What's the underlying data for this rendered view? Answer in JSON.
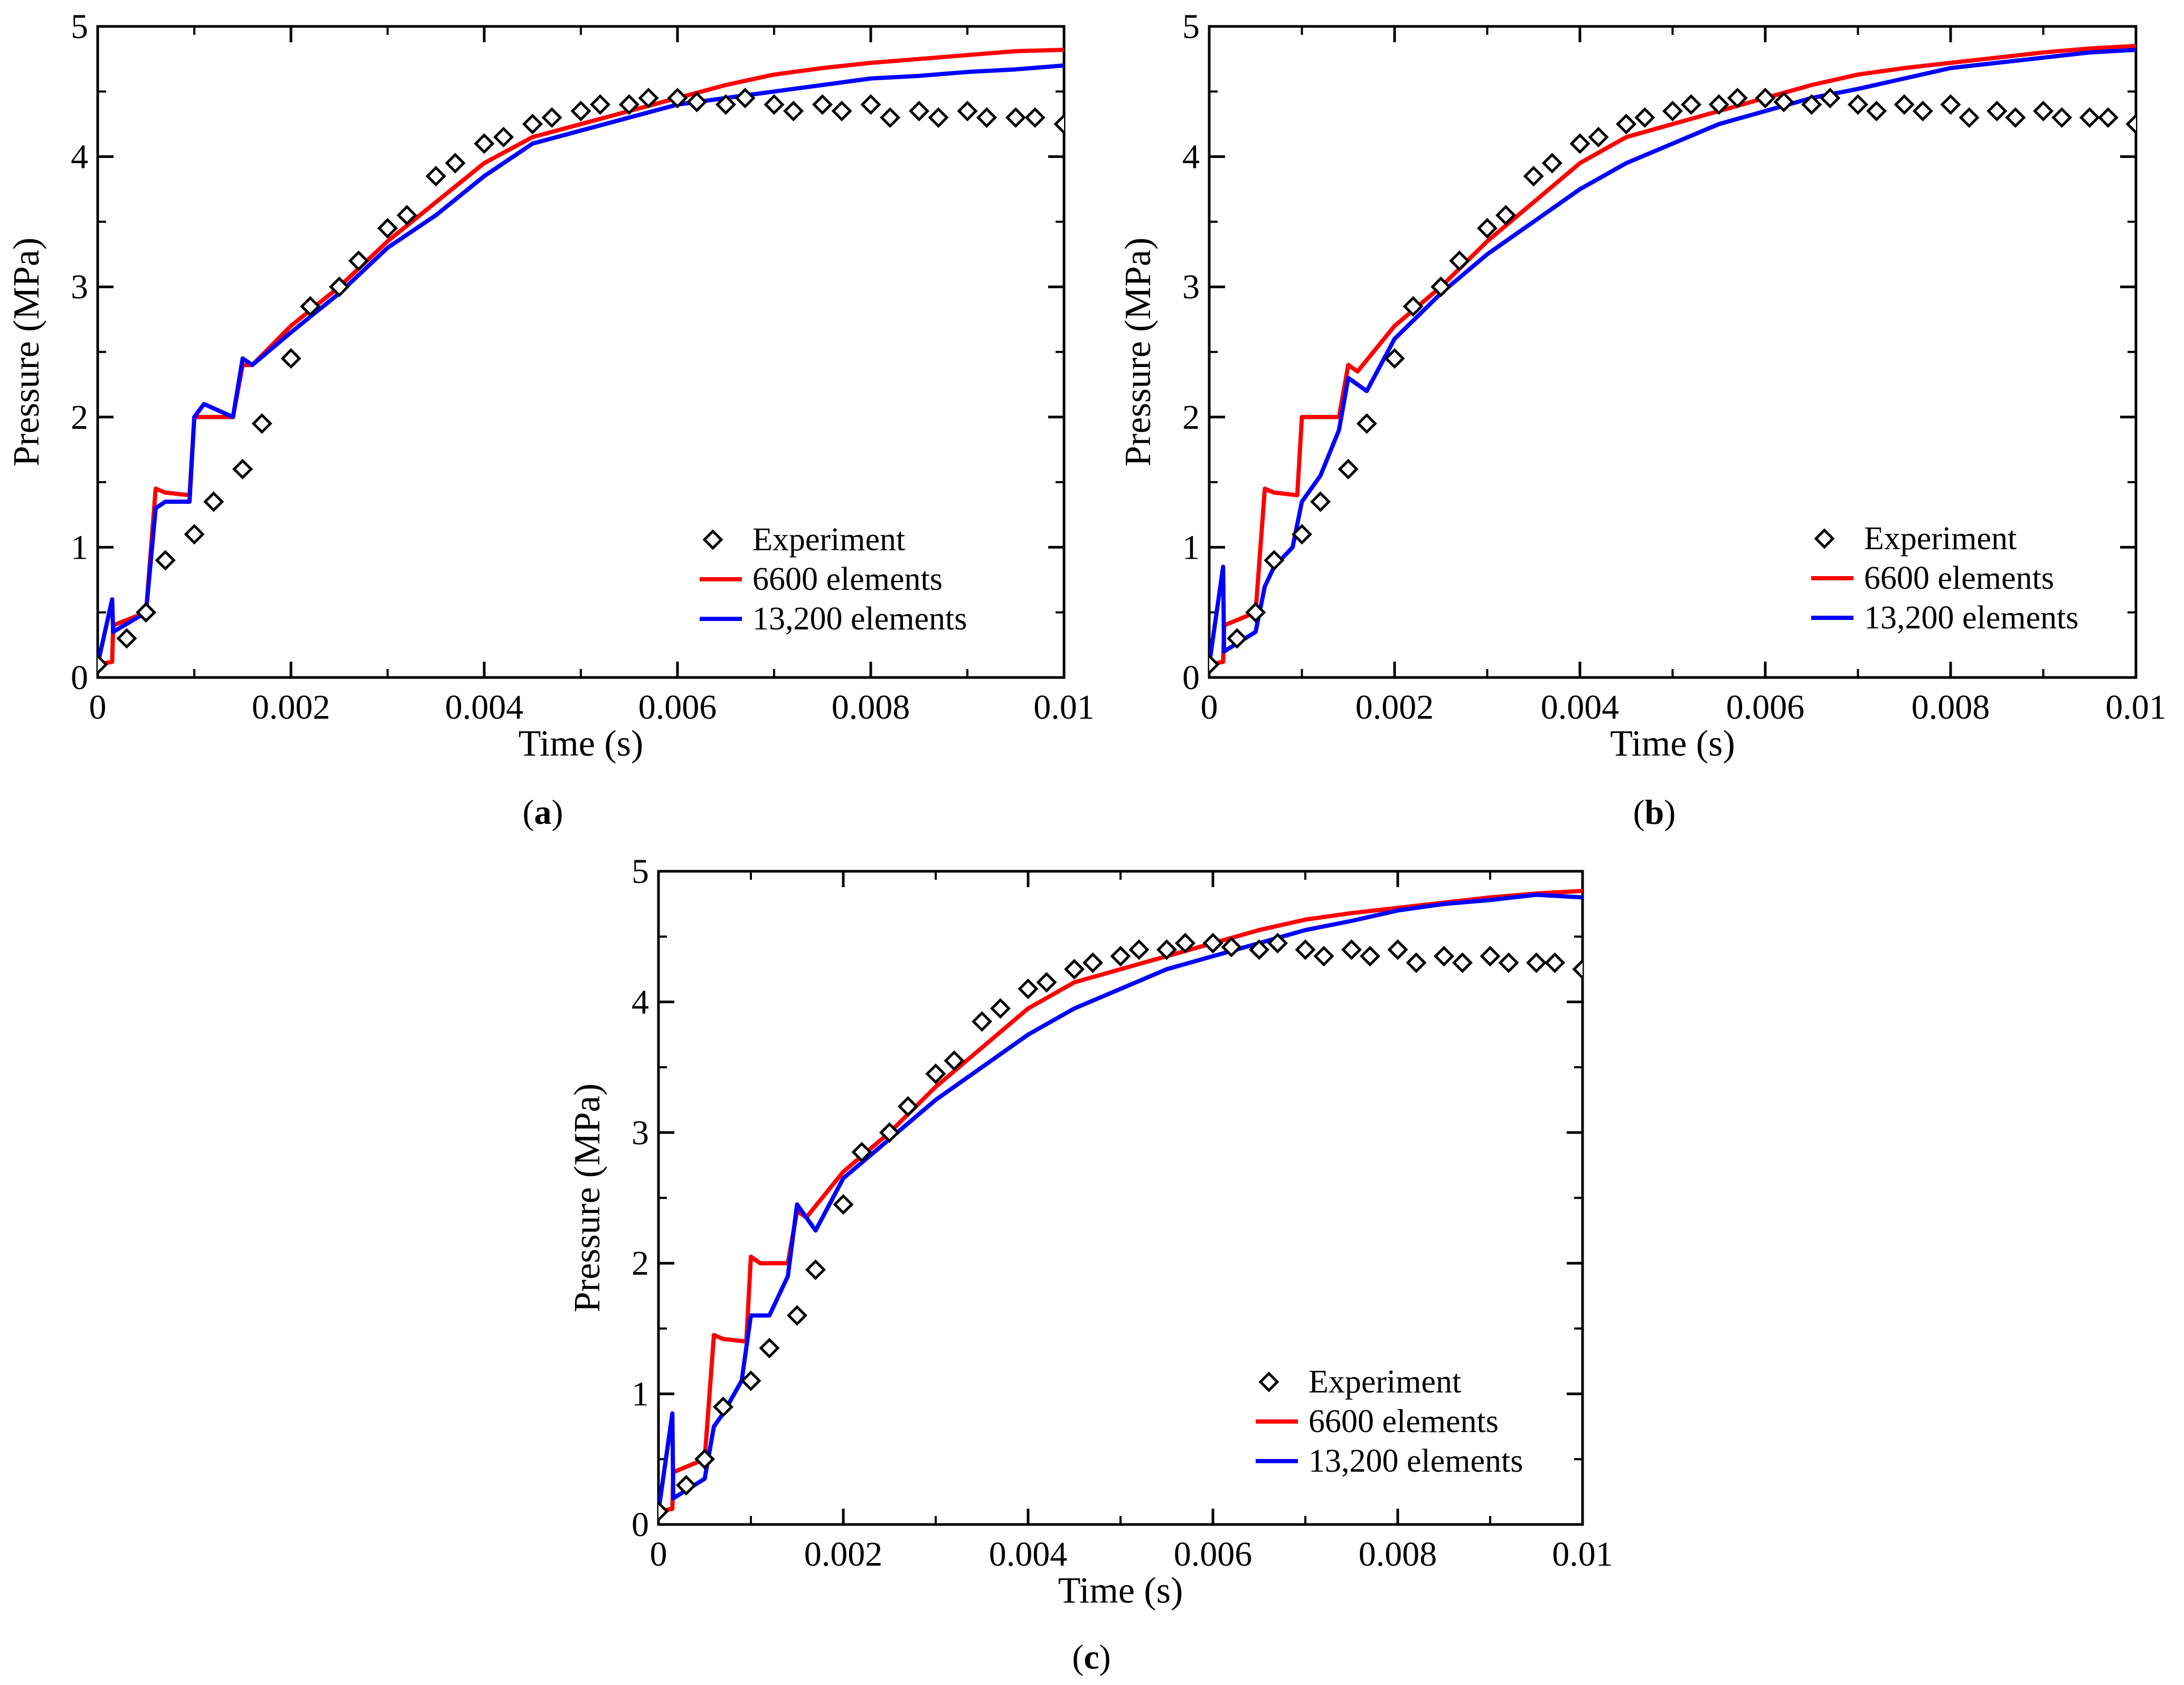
{
  "figure": {
    "panel_labels": [
      "(a)",
      "(b)",
      "(c)"
    ]
  },
  "colors": {
    "experiment": "#000000",
    "elements_6600": "#ff0000",
    "elements_13200": "#0000ff"
  },
  "chart_data": [
    {
      "panel": "(a)",
      "type": "line",
      "title": "",
      "xlabel": "Time (s)",
      "ylabel": "Pressure (MPa)",
      "xlim": [
        0,
        0.01
      ],
      "ylim": [
        0,
        5
      ],
      "xticks": [
        0,
        0.002,
        0.004,
        0.006,
        0.008,
        0.01
      ],
      "xtick_labels": [
        "0",
        "0.002",
        "0.004",
        "0.006",
        "0.008",
        "0.01"
      ],
      "yticks": [
        0,
        1,
        2,
        3,
        4,
        5
      ],
      "ytick_labels": [
        "0",
        "1",
        "2",
        "3",
        "4",
        "5"
      ],
      "legend_position": "bottom-right",
      "series": [
        {
          "name": "Experiment",
          "marker": "diamond",
          "color": "#000000",
          "x": [
            0,
            0.0003,
            0.0005,
            0.0007,
            0.001,
            0.0012,
            0.0015,
            0.0017,
            0.002,
            0.0022,
            0.0025,
            0.0027,
            0.003,
            0.0032,
            0.0035,
            0.0037,
            0.004,
            0.0042,
            0.0045,
            0.0047,
            0.005,
            0.0052,
            0.0055,
            0.0057,
            0.006,
            0.0062,
            0.0065,
            0.0067,
            0.007,
            0.0072,
            0.0075,
            0.0077,
            0.008,
            0.0082,
            0.0085,
            0.0087,
            0.009,
            0.0092,
            0.0095,
            0.0097,
            0.01
          ],
          "y": [
            0.1,
            0.3,
            0.5,
            0.9,
            1.1,
            1.35,
            1.6,
            1.95,
            2.45,
            2.85,
            3.0,
            3.2,
            3.45,
            3.55,
            3.85,
            3.95,
            4.1,
            4.15,
            4.25,
            4.3,
            4.35,
            4.4,
            4.4,
            4.45,
            4.45,
            4.42,
            4.4,
            4.45,
            4.4,
            4.35,
            4.4,
            4.35,
            4.4,
            4.3,
            4.35,
            4.3,
            4.35,
            4.3,
            4.3,
            4.3,
            4.25
          ]
        },
        {
          "name": "6600 elements",
          "marker": "line",
          "color": "#ff0000",
          "x": [
            0,
            0.00015,
            0.00016,
            0.0005,
            0.0006,
            0.0007,
            0.00095,
            0.001,
            0.0011,
            0.0014,
            0.0015,
            0.0016,
            0.002,
            0.0025,
            0.003,
            0.0035,
            0.004,
            0.0045,
            0.005,
            0.0055,
            0.006,
            0.0065,
            0.007,
            0.0075,
            0.008,
            0.0085,
            0.009,
            0.0095,
            0.01
          ],
          "y": [
            0.1,
            0.12,
            0.4,
            0.5,
            1.45,
            1.42,
            1.4,
            2.0,
            2.0,
            2.0,
            2.4,
            2.4,
            2.7,
            3.0,
            3.35,
            3.65,
            3.95,
            4.15,
            4.25,
            4.35,
            4.45,
            4.55,
            4.63,
            4.68,
            4.72,
            4.75,
            4.78,
            4.81,
            4.82
          ]
        },
        {
          "name": "13,200 elements",
          "marker": "line",
          "color": "#0000ff",
          "x": [
            0,
            0.00015,
            0.00016,
            0.0005,
            0.0006,
            0.0007,
            0.00095,
            0.001,
            0.0011,
            0.0014,
            0.0015,
            0.0016,
            0.002,
            0.0025,
            0.003,
            0.0035,
            0.004,
            0.0045,
            0.005,
            0.0055,
            0.006,
            0.0065,
            0.007,
            0.0075,
            0.008,
            0.0085,
            0.009,
            0.0095,
            0.01
          ],
          "y": [
            0.1,
            0.6,
            0.35,
            0.5,
            1.3,
            1.35,
            1.35,
            2.0,
            2.1,
            2.0,
            2.45,
            2.4,
            2.65,
            2.95,
            3.3,
            3.55,
            3.85,
            4.1,
            4.2,
            4.3,
            4.4,
            4.45,
            4.5,
            4.55,
            4.6,
            4.62,
            4.65,
            4.67,
            4.7
          ]
        }
      ]
    },
    {
      "panel": "(b)",
      "type": "line",
      "title": "",
      "xlabel": "Time (s)",
      "ylabel": "Pressure (MPa)",
      "xlim": [
        0,
        0.01
      ],
      "ylim": [
        0,
        5
      ],
      "xticks": [
        0,
        0.002,
        0.004,
        0.006,
        0.008,
        0.01
      ],
      "xtick_labels": [
        "0",
        "0.002",
        "0.004",
        "0.006",
        "0.008",
        "0.01"
      ],
      "yticks": [
        0,
        1,
        2,
        3,
        4,
        5
      ],
      "ytick_labels": [
        "0",
        "1",
        "2",
        "3",
        "4",
        "5"
      ],
      "legend_position": "bottom-right",
      "series": [
        {
          "name": "Experiment",
          "marker": "diamond",
          "color": "#000000",
          "x": [
            0,
            0.0003,
            0.0005,
            0.0007,
            0.001,
            0.0012,
            0.0015,
            0.0017,
            0.002,
            0.0022,
            0.0025,
            0.0027,
            0.003,
            0.0032,
            0.0035,
            0.0037,
            0.004,
            0.0042,
            0.0045,
            0.0047,
            0.005,
            0.0052,
            0.0055,
            0.0057,
            0.006,
            0.0062,
            0.0065,
            0.0067,
            0.007,
            0.0072,
            0.0075,
            0.0077,
            0.008,
            0.0082,
            0.0085,
            0.0087,
            0.009,
            0.0092,
            0.0095,
            0.0097,
            0.01
          ],
          "y": [
            0.1,
            0.3,
            0.5,
            0.9,
            1.1,
            1.35,
            1.6,
            1.95,
            2.45,
            2.85,
            3.0,
            3.2,
            3.45,
            3.55,
            3.85,
            3.95,
            4.1,
            4.15,
            4.25,
            4.3,
            4.35,
            4.4,
            4.4,
            4.45,
            4.45,
            4.42,
            4.4,
            4.45,
            4.4,
            4.35,
            4.4,
            4.35,
            4.4,
            4.3,
            4.35,
            4.3,
            4.35,
            4.3,
            4.3,
            4.3,
            4.25
          ]
        },
        {
          "name": "6600 elements",
          "marker": "line",
          "color": "#ff0000",
          "x": [
            0,
            0.00015,
            0.00016,
            0.0005,
            0.0006,
            0.0007,
            0.00095,
            0.001,
            0.0011,
            0.0014,
            0.0015,
            0.0016,
            0.002,
            0.0025,
            0.003,
            0.0035,
            0.004,
            0.0045,
            0.005,
            0.0055,
            0.006,
            0.0065,
            0.007,
            0.0075,
            0.008,
            0.0085,
            0.009,
            0.0095,
            0.01
          ],
          "y": [
            0.1,
            0.12,
            0.4,
            0.5,
            1.45,
            1.42,
            1.4,
            2.0,
            2.0,
            2.0,
            2.4,
            2.35,
            2.7,
            3.0,
            3.35,
            3.65,
            3.95,
            4.15,
            4.25,
            4.35,
            4.45,
            4.55,
            4.63,
            4.68,
            4.72,
            4.76,
            4.8,
            4.83,
            4.85
          ]
        },
        {
          "name": "13,200 elements",
          "marker": "line",
          "color": "#0000ff",
          "x": [
            0,
            0.00015,
            0.00016,
            0.0005,
            0.0006,
            0.0007,
            0.0009,
            0.001,
            0.0012,
            0.0014,
            0.0015,
            0.0017,
            0.002,
            0.0025,
            0.003,
            0.0035,
            0.004,
            0.0045,
            0.005,
            0.0055,
            0.006,
            0.0065,
            0.007,
            0.0075,
            0.008,
            0.0085,
            0.009,
            0.0095,
            0.01
          ],
          "y": [
            0.1,
            0.85,
            0.2,
            0.35,
            0.7,
            0.85,
            1.0,
            1.35,
            1.55,
            1.9,
            2.3,
            2.2,
            2.6,
            2.95,
            3.25,
            3.5,
            3.75,
            3.95,
            4.1,
            4.25,
            4.35,
            4.45,
            4.52,
            4.6,
            4.68,
            4.72,
            4.76,
            4.8,
            4.82
          ]
        }
      ]
    },
    {
      "panel": "(c)",
      "type": "line",
      "title": "",
      "xlabel": "Time (s)",
      "ylabel": "Pressure (MPa)",
      "xlim": [
        0,
        0.01
      ],
      "ylim": [
        0,
        5
      ],
      "xticks": [
        0,
        0.002,
        0.004,
        0.006,
        0.008,
        0.01
      ],
      "xtick_labels": [
        "0",
        "0.002",
        "0.004",
        "0.006",
        "0.008",
        "0.01"
      ],
      "yticks": [
        0,
        1,
        2,
        3,
        4,
        5
      ],
      "ytick_labels": [
        "0",
        "1",
        "2",
        "3",
        "4",
        "5"
      ],
      "legend_position": "bottom-right",
      "series": [
        {
          "name": "Experiment",
          "marker": "diamond",
          "color": "#000000",
          "x": [
            0,
            0.0003,
            0.0005,
            0.0007,
            0.001,
            0.0012,
            0.0015,
            0.0017,
            0.002,
            0.0022,
            0.0025,
            0.0027,
            0.003,
            0.0032,
            0.0035,
            0.0037,
            0.004,
            0.0042,
            0.0045,
            0.0047,
            0.005,
            0.0052,
            0.0055,
            0.0057,
            0.006,
            0.0062,
            0.0065,
            0.0067,
            0.007,
            0.0072,
            0.0075,
            0.0077,
            0.008,
            0.0082,
            0.0085,
            0.0087,
            0.009,
            0.0092,
            0.0095,
            0.0097,
            0.01
          ],
          "y": [
            0.1,
            0.3,
            0.5,
            0.9,
            1.1,
            1.35,
            1.6,
            1.95,
            2.45,
            2.85,
            3.0,
            3.2,
            3.45,
            3.55,
            3.85,
            3.95,
            4.1,
            4.15,
            4.25,
            4.3,
            4.35,
            4.4,
            4.4,
            4.45,
            4.45,
            4.42,
            4.4,
            4.45,
            4.4,
            4.35,
            4.4,
            4.35,
            4.4,
            4.3,
            4.35,
            4.3,
            4.35,
            4.3,
            4.3,
            4.3,
            4.25
          ]
        },
        {
          "name": "6600 elements",
          "marker": "line",
          "color": "#ff0000",
          "x": [
            0,
            0.00015,
            0.00016,
            0.0005,
            0.0006,
            0.0007,
            0.00095,
            0.001,
            0.0011,
            0.0014,
            0.0015,
            0.0016,
            0.002,
            0.0025,
            0.003,
            0.0035,
            0.004,
            0.0045,
            0.005,
            0.0055,
            0.006,
            0.0065,
            0.007,
            0.0075,
            0.008,
            0.0085,
            0.009,
            0.0095,
            0.01
          ],
          "y": [
            0.1,
            0.12,
            0.4,
            0.5,
            1.45,
            1.42,
            1.4,
            2.05,
            2.0,
            2.0,
            2.4,
            2.35,
            2.7,
            3.0,
            3.35,
            3.65,
            3.95,
            4.15,
            4.25,
            4.35,
            4.45,
            4.55,
            4.63,
            4.68,
            4.72,
            4.76,
            4.8,
            4.83,
            4.85
          ]
        },
        {
          "name": "13,200 elements",
          "marker": "line",
          "color": "#0000ff",
          "x": [
            0,
            0.00015,
            0.00016,
            0.0005,
            0.0006,
            0.0007,
            0.0009,
            0.001,
            0.0012,
            0.0014,
            0.0015,
            0.0017,
            0.002,
            0.0025,
            0.003,
            0.0035,
            0.004,
            0.0045,
            0.005,
            0.0055,
            0.006,
            0.0065,
            0.007,
            0.0075,
            0.008,
            0.0085,
            0.009,
            0.0095,
            0.01
          ],
          "y": [
            0.1,
            0.85,
            0.2,
            0.35,
            0.75,
            0.85,
            1.1,
            1.6,
            1.6,
            1.9,
            2.45,
            2.25,
            2.65,
            2.95,
            3.25,
            3.5,
            3.75,
            3.95,
            4.1,
            4.25,
            4.35,
            4.45,
            4.55,
            4.62,
            4.7,
            4.75,
            4.78,
            4.82,
            4.8
          ]
        }
      ]
    }
  ]
}
